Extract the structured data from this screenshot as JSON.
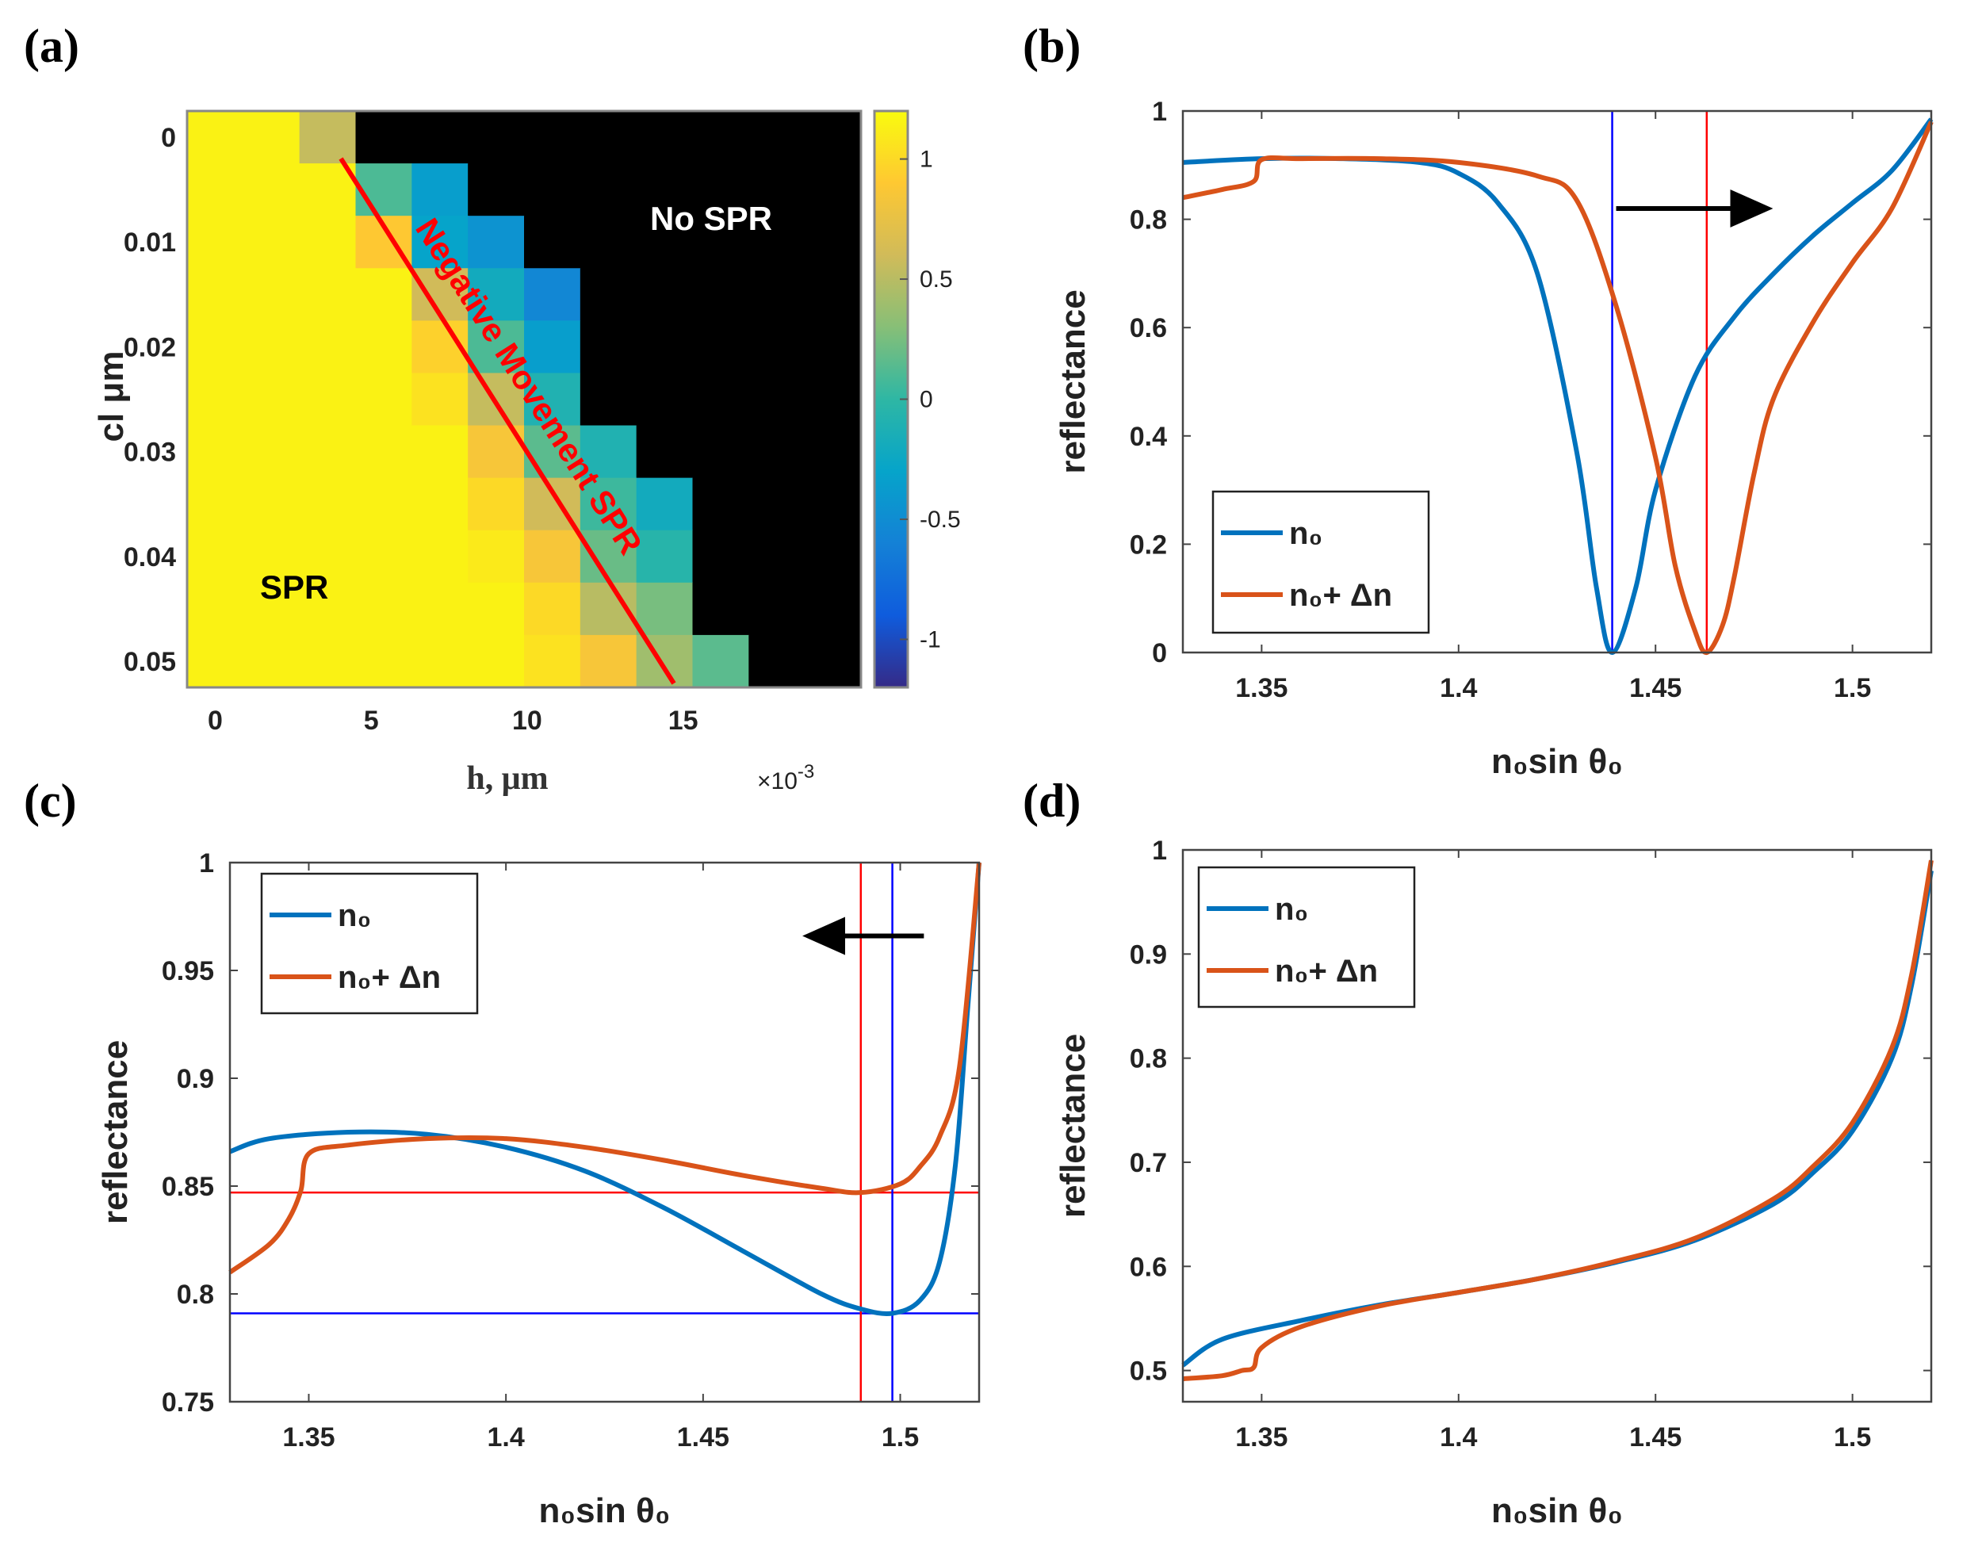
{
  "colors": {
    "n0": "#0072BD",
    "n0_dn": "#D95319",
    "marker_blue": "#0000FF",
    "marker_red": "#FF0000",
    "arrow": "#000000",
    "no_spr": "#000000",
    "diagonal": "#FF0000"
  },
  "chart_data": [
    {
      "panel": "(a)",
      "type": "heatmap",
      "xlabel": "h, μm",
      "x_exponent": "×10",
      "x_exponent_power": "-3",
      "ylabel": "cl μm",
      "x_ticks": [
        "0",
        "5",
        "10",
        "15"
      ],
      "y_ticks": [
        "0",
        "0.01",
        "0.02",
        "0.03",
        "0.04",
        "0.05"
      ],
      "x_values_e3": [
        0,
        1.8,
        3.6,
        5.4,
        7.2,
        9,
        10.8,
        12.6,
        14.4,
        16.2,
        18,
        19.8
      ],
      "y_values": [
        0,
        0.005,
        0.01,
        0.015,
        0.02,
        0.025,
        0.03,
        0.035,
        0.04,
        0.045,
        0.05
      ],
      "colorbar_range": [
        -1.2,
        1.2
      ],
      "colorbar_ticks": [
        "1",
        "0.5",
        "0",
        "-0.5",
        "-1"
      ],
      "values": [
        [
          1.15,
          1.15,
          0.55,
          null,
          null,
          null,
          null,
          null,
          null,
          null,
          null,
          null
        ],
        [
          1.15,
          1.15,
          1.15,
          0.1,
          -0.35,
          null,
          null,
          null,
          null,
          null,
          null,
          null
        ],
        [
          1.15,
          1.15,
          1.15,
          0.9,
          -0.3,
          -0.45,
          null,
          null,
          null,
          null,
          null,
          null
        ],
        [
          1.15,
          1.15,
          1.15,
          1.15,
          0.6,
          -0.2,
          -0.55,
          null,
          null,
          null,
          null,
          null
        ],
        [
          1.15,
          1.15,
          1.15,
          1.15,
          0.95,
          0.1,
          -0.35,
          null,
          null,
          null,
          null,
          null
        ],
        [
          1.15,
          1.15,
          1.15,
          1.15,
          1.05,
          0.55,
          -0.1,
          null,
          null,
          null,
          null,
          null
        ],
        [
          1.15,
          1.15,
          1.15,
          1.15,
          1.15,
          0.85,
          0.15,
          -0.1,
          null,
          null,
          null,
          null
        ],
        [
          1.15,
          1.15,
          1.15,
          1.15,
          1.15,
          1.0,
          0.6,
          0.05,
          -0.2,
          null,
          null,
          null
        ],
        [
          1.15,
          1.15,
          1.15,
          1.15,
          1.15,
          1.1,
          0.85,
          0.2,
          -0.05,
          null,
          null,
          null
        ],
        [
          1.15,
          1.15,
          1.15,
          1.15,
          1.15,
          1.15,
          1.0,
          0.5,
          0.25,
          null,
          null,
          null
        ],
        [
          1.15,
          1.15,
          1.15,
          1.15,
          1.15,
          1.15,
          1.05,
          0.85,
          0.4,
          0.15,
          null,
          null
        ]
      ],
      "annotations": [
        "No SPR",
        "Negative Movement SPR",
        "SPR"
      ]
    },
    {
      "panel": "(b)",
      "type": "line",
      "xlabel": "n₀sin θ₀",
      "ylabel": "reflectance",
      "xlim": [
        1.33,
        1.52
      ],
      "ylim": [
        0,
        1
      ],
      "x_ticks": [
        1.35,
        1.4,
        1.45,
        1.5
      ],
      "y_ticks": [
        0,
        0.2,
        0.4,
        0.6,
        0.8,
        1
      ],
      "legend": {
        "position": "bottom-left",
        "entries": [
          "n₀",
          "n₀+ Δn"
        ]
      },
      "vlines": [
        {
          "x": 1.439,
          "color": "blue"
        },
        {
          "x": 1.463,
          "color": "red"
        }
      ],
      "arrow": {
        "direction": "right",
        "from": [
          1.44,
          0.82
        ],
        "to": [
          1.475,
          0.82
        ]
      },
      "series": [
        {
          "name": "n₀",
          "x": [
            1.33,
            1.35,
            1.37,
            1.39,
            1.4,
            1.41,
            1.42,
            1.43,
            1.435,
            1.439,
            1.445,
            1.45,
            1.46,
            1.47,
            1.48,
            1.49,
            1.5,
            1.51,
            1.52
          ],
          "y": [
            0.905,
            0.912,
            0.912,
            0.905,
            0.885,
            0.83,
            0.7,
            0.37,
            0.12,
            0.0,
            0.12,
            0.3,
            0.51,
            0.62,
            0.7,
            0.77,
            0.83,
            0.89,
            0.985
          ]
        },
        {
          "name": "n₀+ Δn",
          "x": [
            1.33,
            1.34,
            1.348,
            1.35,
            1.36,
            1.38,
            1.4,
            1.42,
            1.43,
            1.44,
            1.45,
            1.455,
            1.46,
            1.463,
            1.467,
            1.47,
            1.475,
            1.48,
            1.49,
            1.5,
            1.51,
            1.52
          ],
          "y": [
            0.84,
            0.855,
            0.87,
            0.91,
            0.912,
            0.912,
            0.905,
            0.88,
            0.835,
            0.64,
            0.36,
            0.16,
            0.04,
            0.0,
            0.05,
            0.14,
            0.33,
            0.47,
            0.61,
            0.72,
            0.82,
            0.98
          ]
        }
      ]
    },
    {
      "panel": "(c)",
      "type": "line",
      "xlabel": "n₀sin θ₀",
      "ylabel": "reflectance",
      "xlim": [
        1.33,
        1.52
      ],
      "ylim": [
        0.75,
        1
      ],
      "x_ticks": [
        1.35,
        1.4,
        1.45,
        1.5
      ],
      "y_ticks": [
        0.75,
        0.8,
        0.85,
        0.9,
        0.95,
        1
      ],
      "legend": {
        "position": "top-left",
        "entries": [
          "n₀",
          "n₀+ Δn"
        ]
      },
      "vlines": [
        {
          "x": 1.49,
          "color": "red"
        },
        {
          "x": 1.498,
          "color": "blue"
        }
      ],
      "hlines": [
        {
          "y": 0.847,
          "color": "red"
        },
        {
          "y": 0.791,
          "color": "blue"
        }
      ],
      "arrow": {
        "direction": "left",
        "from": [
          1.506,
          0.966
        ],
        "to": [
          1.48,
          0.966
        ]
      },
      "series": [
        {
          "name": "n₀",
          "x": [
            1.33,
            1.34,
            1.36,
            1.38,
            1.4,
            1.42,
            1.44,
            1.46,
            1.48,
            1.49,
            1.498,
            1.505,
            1.51,
            1.514,
            1.517,
            1.52
          ],
          "y": [
            0.866,
            0.872,
            0.875,
            0.874,
            0.868,
            0.857,
            0.84,
            0.82,
            0.8,
            0.793,
            0.791,
            0.797,
            0.815,
            0.86,
            0.93,
            1.0
          ]
        },
        {
          "name": "n₀+ Δn",
          "x": [
            1.33,
            1.34,
            1.345,
            1.348,
            1.35,
            1.36,
            1.38,
            1.4,
            1.42,
            1.44,
            1.46,
            1.48,
            1.49,
            1.5,
            1.505,
            1.51,
            1.515,
            1.52
          ],
          "y": [
            0.81,
            0.823,
            0.835,
            0.848,
            0.865,
            0.869,
            0.872,
            0.872,
            0.868,
            0.862,
            0.855,
            0.849,
            0.847,
            0.851,
            0.859,
            0.873,
            0.905,
            1.0
          ]
        }
      ]
    },
    {
      "panel": "(d)",
      "type": "line",
      "xlabel": "n₀sin θ₀",
      "ylabel": "reflectance",
      "xlim": [
        1.33,
        1.52
      ],
      "ylim": [
        0.47,
        1
      ],
      "x_ticks": [
        1.35,
        1.4,
        1.45,
        1.5
      ],
      "y_ticks": [
        0.5,
        0.6,
        0.7,
        0.8,
        0.9,
        1
      ],
      "legend": {
        "position": "top-left",
        "entries": [
          "n₀",
          "n₀+ Δn"
        ]
      },
      "series": [
        {
          "name": "n₀",
          "x": [
            1.33,
            1.34,
            1.36,
            1.38,
            1.4,
            1.42,
            1.44,
            1.46,
            1.48,
            1.49,
            1.5,
            1.51,
            1.515,
            1.52
          ],
          "y": [
            0.505,
            0.53,
            0.548,
            0.563,
            0.575,
            0.588,
            0.604,
            0.625,
            0.66,
            0.69,
            0.73,
            0.8,
            0.87,
            0.98
          ]
        },
        {
          "name": "n₀+ Δn",
          "x": [
            1.33,
            1.34,
            1.345,
            1.348,
            1.35,
            1.36,
            1.38,
            1.4,
            1.42,
            1.44,
            1.46,
            1.48,
            1.49,
            1.5,
            1.51,
            1.515,
            1.52
          ],
          "y": [
            0.492,
            0.495,
            0.5,
            0.503,
            0.522,
            0.542,
            0.562,
            0.575,
            0.588,
            0.605,
            0.627,
            0.665,
            0.696,
            0.738,
            0.81,
            0.88,
            0.99
          ]
        }
      ]
    }
  ]
}
